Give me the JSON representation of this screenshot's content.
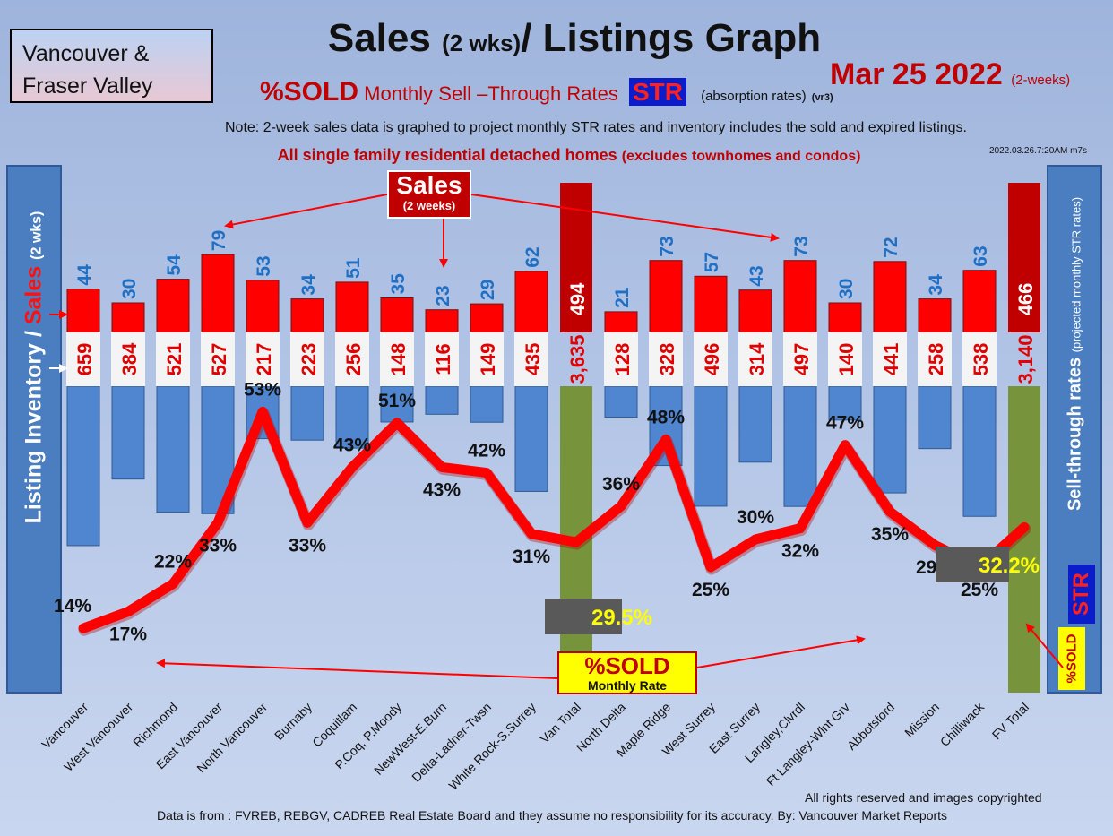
{
  "header": {
    "region": [
      "Vancouver &",
      "Fraser Valley"
    ],
    "title_main": "Sales",
    "title_small": "(2 wks)",
    "title_rest": "/ Listings Graph",
    "date": "Mar  25  2022",
    "date_suffix": "(2-weeks)",
    "subtitle_sold": "%SOLD",
    "subtitle_text": "Monthly Sell –Through Rates",
    "subtitle_str": "STR",
    "subtitle_abs": "(absorption rates)",
    "subtitle_vr": "(vr3)",
    "note": "Note: 2-week sales data is graphed to project monthly STR rates and inventory includes the sold and expired listings.",
    "timestamp": "2022.03.26.7:20AM m7s",
    "subnote_main": "All single family residential detached homes",
    "subnote_small": "(excludes townhomes and condos)"
  },
  "labels": {
    "left_axis_inventory": "Listing Inventory /",
    "left_axis_sales": "Sales",
    "left_axis_small": "(2 wks)",
    "right_axis": "Sell-through rates",
    "right_axis_small": "(projected monthly STR rates)",
    "str_badge": "STR",
    "sold_badge": "%SOLD",
    "sales_callout": "Sales",
    "sales_callout_small": "(2 weeks)",
    "sold_callout": "%SOLD",
    "sold_callout_small": "Monthly Rate"
  },
  "footer": {
    "rights": "All rights reserved and  images copyrighted",
    "source": "Data is from : FVREB, REBGV, CADREB Real Estate Board and they assume no responsibility for its accuracy. By: Vancouver Market Reports"
  },
  "colors": {
    "sales_bar": "#ff0000",
    "inventory_bar": "#4f86cf",
    "total_sales_bar": "#c00000",
    "total_inventory_bar": "#77933c",
    "str_line": "#ff0000",
    "sales_label": "#1f6fc4",
    "inventory_label": "#e00000"
  },
  "chart_data": {
    "type": "bar",
    "categories": [
      "Vancouver",
      "West Vancouver",
      "Richmond",
      "East Vancouver",
      "North Vancouver",
      "Burnaby",
      "Coquitlam",
      "P.Coq, P.Moody",
      "NewWest-E.Burn",
      "Delta-Ladner-Twsn",
      "White Rock-S.Surrey",
      "Van Total",
      "North Delta",
      "Maple Ridge",
      "West Surrey",
      "East Surrey",
      "Langley,Clvrdl",
      "Ft Langley-Wlnt Grv",
      "Abbotsford",
      "Mission",
      "Chilliwack",
      "FV Total"
    ],
    "series": [
      {
        "name": "Sales",
        "values": [
          44,
          30,
          54,
          79,
          53,
          34,
          51,
          35,
          23,
          29,
          62,
          494,
          21,
          73,
          57,
          43,
          73,
          30,
          72,
          34,
          63,
          466
        ]
      },
      {
        "name": "Listing Inventory",
        "values": [
          659,
          384,
          521,
          527,
          217,
          223,
          256,
          148,
          116,
          149,
          435,
          3635,
          128,
          328,
          496,
          314,
          497,
          140,
          441,
          258,
          538,
          3140
        ]
      },
      {
        "name": "%SOLD",
        "values": [
          14,
          17,
          22,
          33,
          53,
          33,
          43,
          51,
          43,
          42,
          31,
          29.5,
          36,
          48,
          25,
          30,
          32,
          47,
          35,
          29,
          25,
          32.2
        ]
      }
    ],
    "sales_labels": [
      "44",
      "30",
      "54",
      "79",
      "53",
      "34",
      "51",
      "35",
      "23",
      "29",
      "62",
      "494",
      "21",
      "73",
      "57",
      "43",
      "73",
      "30",
      "72",
      "34",
      "63",
      "466"
    ],
    "inventory_labels": [
      "659",
      "384",
      "521",
      "527",
      "217",
      "223",
      "256",
      "148",
      "116",
      "149",
      "435",
      "3,635",
      "128",
      "328",
      "496",
      "314",
      "497",
      "140",
      "441",
      "258",
      "538",
      "3,140"
    ],
    "str_labels": [
      "14%",
      "17%",
      "22%",
      "33%",
      "53%",
      "33%",
      "43%",
      "51%",
      "43%",
      "42%",
      "31%",
      "29.5%",
      "36%",
      "48%",
      "25%",
      "30%",
      "32%",
      "47%",
      "35%",
      "29%",
      "25%",
      "32.2%"
    ],
    "total_indices": [
      11,
      21
    ],
    "grid": false
  }
}
